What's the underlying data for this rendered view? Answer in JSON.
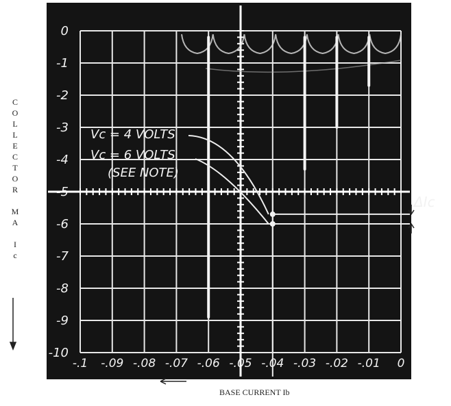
{
  "chart_data": {
    "type": "line",
    "y_label": "COLLECTOR MA Ic",
    "x_label": "BASE CURRENT Ib",
    "xlim": [
      -0.1,
      0
    ],
    "ylim": [
      -10,
      0
    ],
    "xticks": [
      {
        "value": -0.1,
        "label": "-.1"
      },
      {
        "value": -0.09,
        "label": "-.09"
      },
      {
        "value": -0.08,
        "label": "-.08"
      },
      {
        "value": -0.07,
        "label": "-.07"
      },
      {
        "value": -0.06,
        "label": "-.06"
      },
      {
        "value": -0.05,
        "label": "-.05"
      },
      {
        "value": -0.04,
        "label": "-.04"
      },
      {
        "value": -0.03,
        "label": "-.03"
      },
      {
        "value": -0.02,
        "label": "-.02"
      },
      {
        "value": -0.01,
        "label": "-.01"
      },
      0
    ],
    "yticks": [
      0,
      -1,
      -2,
      -3,
      -4,
      -5,
      -6,
      -7,
      -8,
      -9,
      -10
    ],
    "grid": true,
    "series": [
      {
        "color": "#f4f4f4",
        "x": [
          -0.06,
          -0.06
        ],
        "values": [
          -0.2,
          -8.9
        ]
      },
      {
        "color": "#f4f4f4",
        "x": [
          -0.03,
          -0.03
        ],
        "values": [
          -0.2,
          -4.3
        ]
      },
      {
        "color": "#f4f4f4",
        "x": [
          -0.02,
          -0.02
        ],
        "values": [
          -0.2,
          -3.0
        ]
      },
      {
        "color": "#f4f4f4",
        "x": [
          -0.01,
          -0.01
        ],
        "values": [
          -0.2,
          -1.7
        ]
      },
      {
        "color": "#f4f4f4",
        "x": [
          -0.04,
          -0.04
        ],
        "values": [
          -5.7,
          -6.0
        ]
      }
    ],
    "annotations": [
      "Vc = 4 VOLTS",
      "Vc = 6 VOLTS",
      "(SEE NOTE)",
      "ΔIc"
    ]
  }
}
